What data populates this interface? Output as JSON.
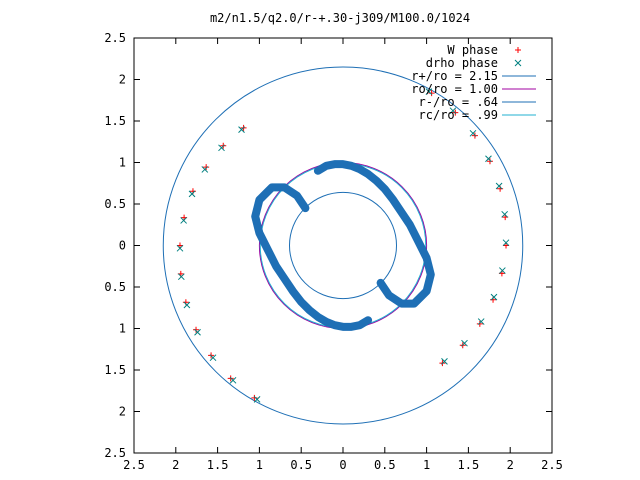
{
  "chart_data": {
    "type": "scatter",
    "title": "m2/n1.5/q2.0/r-+.30-j309/M100.0/1024",
    "xlim": [
      -2.5,
      2.5
    ],
    "ylim": [
      -2.5,
      2.5
    ],
    "x_tick_labels": [
      "2.5",
      "2",
      "1.5",
      "1",
      "0.5",
      "0",
      "0.5",
      "1",
      "1.5",
      "2",
      "2.5"
    ],
    "y_tick_labels": [
      "2.5",
      "2",
      "1.5",
      "1",
      "0.5",
      "0",
      "0.5",
      "1",
      "1.5",
      "2",
      "2.5"
    ],
    "tick_values": [
      -2.5,
      -2,
      -1.5,
      -1,
      -0.5,
      0,
      0.5,
      1,
      1.5,
      2,
      2.5
    ],
    "legend_position": "top-right",
    "legend": [
      {
        "label": "W phase",
        "kind": "points",
        "marker": "+",
        "color": "#ff0000"
      },
      {
        "label": "drho phase",
        "kind": "points",
        "marker": "x",
        "color": "#008080"
      },
      {
        "label": "r+/ro = 2.15",
        "kind": "line",
        "color": "#1e6fb5"
      },
      {
        "label": "ro/ro = 1.00",
        "kind": "line",
        "color": "#a000a0"
      },
      {
        "label": "r-/ro = .64",
        "kind": "line",
        "color": "#1e6fb5"
      },
      {
        "label": "rc/ro = .99",
        "kind": "line",
        "color": "#20b0d0"
      }
    ],
    "circles": [
      {
        "name": "r+/ro = 2.15",
        "r": 2.15,
        "color": "#1e6fb5"
      },
      {
        "name": "ro/ro = 1.00",
        "r": 1.0,
        "color": "#a000a0"
      },
      {
        "name": "r-/ro = .64",
        "r": 0.64,
        "color": "#1e6fb5"
      },
      {
        "name": "rc/ro = .99",
        "r": 0.99,
        "color": "#20b0d0"
      }
    ],
    "series": [
      {
        "name": "W phase",
        "color": "#ff0000",
        "marker": "+",
        "arms": [
          {
            "r": [
              1.85,
              1.87,
              1.89,
              1.91,
              1.93,
              1.95,
              1.97,
              2.0,
              2.03,
              2.06,
              2.09,
              2.12
            ],
            "phase_deg": [
              130,
              140,
              150,
              160,
              170,
              180,
              190,
              200,
              210,
              220,
              230,
              240
            ]
          },
          {
            "r": [
              1.85,
              1.87,
              1.89,
              1.91,
              1.93,
              1.95,
              1.97,
              2.0,
              2.03,
              2.06,
              2.09,
              2.12
            ],
            "phase_deg": [
              -50,
              -40,
              -30,
              -20,
              -10,
              0,
              10,
              20,
              30,
              40,
              50,
              60
            ]
          }
        ]
      },
      {
        "name": "drho phase",
        "color": "#008080",
        "marker": "x",
        "arms": [
          {
            "r": [
              1.85,
              1.87,
              1.89,
              1.91,
              1.93,
              1.95,
              1.97,
              2.0,
              2.03,
              2.06,
              2.09,
              2.12
            ],
            "phase_deg": [
              131,
              141,
              151,
              161,
              171,
              181,
              191,
              201,
              211,
              221,
              231,
              241
            ]
          },
          {
            "r": [
              1.85,
              1.87,
              1.89,
              1.91,
              1.93,
              1.95,
              1.97,
              2.0,
              2.03,
              2.06,
              2.09,
              2.12
            ],
            "phase_deg": [
              -49,
              -39,
              -29,
              -19,
              -9,
              1,
              11,
              21,
              31,
              41,
              51,
              61
            ]
          }
        ]
      }
    ],
    "inner_arms": [
      {
        "x": [
          -0.45,
          -0.55,
          -0.7,
          -0.85,
          -1.0,
          -1.05,
          -1.0,
          -0.9,
          -0.8,
          -0.7,
          -0.6,
          -0.5,
          -0.4,
          -0.3,
          -0.2,
          -0.1,
          0.0,
          0.1,
          0.2,
          0.3
        ],
        "y": [
          0.45,
          0.6,
          0.7,
          0.7,
          0.55,
          0.35,
          0.15,
          -0.05,
          -0.25,
          -0.4,
          -0.55,
          -0.68,
          -0.78,
          -0.86,
          -0.92,
          -0.96,
          -0.98,
          -0.98,
          -0.96,
          -0.9
        ]
      },
      {
        "x": [
          0.45,
          0.55,
          0.7,
          0.85,
          1.0,
          1.05,
          1.0,
          0.9,
          0.8,
          0.7,
          0.6,
          0.5,
          0.4,
          0.3,
          0.2,
          0.1,
          0.0,
          -0.1,
          -0.2,
          -0.3
        ],
        "y": [
          -0.45,
          -0.6,
          -0.7,
          -0.7,
          -0.55,
          -0.35,
          -0.15,
          0.05,
          0.25,
          0.4,
          0.55,
          0.68,
          0.78,
          0.86,
          0.92,
          0.96,
          0.98,
          0.98,
          0.96,
          0.9
        ]
      }
    ]
  }
}
